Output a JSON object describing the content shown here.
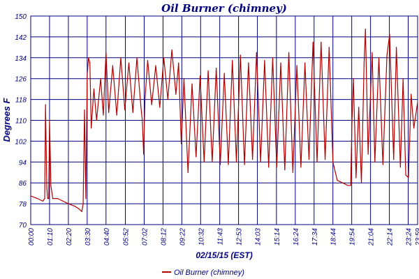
{
  "chart_data": {
    "type": "line",
    "title": "Oil Burner (chimney)",
    "xlabel": "02/15/15 (EST)",
    "ylabel": "Degrees F",
    "ylim": [
      70,
      150
    ],
    "y_ticks": [
      "70",
      "78",
      "86",
      "94",
      "102",
      "110",
      "118",
      "126",
      "134",
      "142",
      "150"
    ],
    "x_ticks": [
      "00:00",
      "01:10",
      "02:20",
      "03:30",
      "04:40",
      "05:52",
      "07:02",
      "08:12",
      "09:22",
      "10:32",
      "11:43",
      "12:53",
      "14:03",
      "15:14",
      "16:24",
      "17:34",
      "18:44",
      "19:54",
      "21:04",
      "22:14",
      "23:24",
      "23:59"
    ],
    "grid": true,
    "legend_position": "bottom-center",
    "series": [
      {
        "name": "Oil Burner (chimney)",
        "color": "#b00000",
        "points": [
          [
            "00:00",
            81
          ],
          [
            "00:25",
            80
          ],
          [
            "00:45",
            79
          ],
          [
            "00:52",
            80
          ],
          [
            "00:55",
            116
          ],
          [
            "01:00",
            84
          ],
          [
            "01:03",
            80
          ],
          [
            "01:07",
            80
          ],
          [
            "01:10",
            110
          ],
          [
            "01:15",
            85
          ],
          [
            "01:22",
            80
          ],
          [
            "01:40",
            80
          ],
          [
            "02:00",
            79
          ],
          [
            "02:20",
            78
          ],
          [
            "02:45",
            77
          ],
          [
            "03:00",
            76
          ],
          [
            "03:10",
            75
          ],
          [
            "03:15",
            78
          ],
          [
            "03:20",
            114
          ],
          [
            "03:25",
            80
          ],
          [
            "03:30",
            127
          ],
          [
            "03:35",
            134
          ],
          [
            "03:40",
            132
          ],
          [
            "03:45",
            107
          ],
          [
            "03:55",
            122
          ],
          [
            "04:05",
            110
          ],
          [
            "04:20",
            126
          ],
          [
            "04:30",
            112
          ],
          [
            "04:40",
            136
          ],
          [
            "04:50",
            113
          ],
          [
            "05:05",
            131
          ],
          [
            "05:20",
            112
          ],
          [
            "05:35",
            134
          ],
          [
            "05:50",
            114
          ],
          [
            "06:05",
            132
          ],
          [
            "06:20",
            113
          ],
          [
            "06:35",
            134
          ],
          [
            "06:50",
            115
          ],
          [
            "06:55",
            110
          ],
          [
            "07:00",
            97
          ],
          [
            "07:05",
            118
          ],
          [
            "07:15",
            133
          ],
          [
            "07:30",
            116
          ],
          [
            "07:45",
            131
          ],
          [
            "08:00",
            115
          ],
          [
            "08:15",
            134
          ],
          [
            "08:30",
            118
          ],
          [
            "08:45",
            137
          ],
          [
            "09:00",
            120
          ],
          [
            "09:10",
            132
          ],
          [
            "09:20",
            101
          ],
          [
            "09:30",
            126
          ],
          [
            "09:45",
            90
          ],
          [
            "10:00",
            124
          ],
          [
            "10:15",
            96
          ],
          [
            "10:30",
            127
          ],
          [
            "10:45",
            94
          ],
          [
            "11:00",
            129
          ],
          [
            "11:15",
            94
          ],
          [
            "11:30",
            130
          ],
          [
            "11:45",
            93
          ],
          [
            "12:00",
            128
          ],
          [
            "12:15",
            93
          ],
          [
            "12:30",
            133
          ],
          [
            "12:45",
            94
          ],
          [
            "13:00",
            135
          ],
          [
            "13:15",
            93
          ],
          [
            "13:30",
            132
          ],
          [
            "13:45",
            95
          ],
          [
            "14:00",
            136
          ],
          [
            "14:15",
            94
          ],
          [
            "14:30",
            133
          ],
          [
            "14:45",
            92
          ],
          [
            "15:00",
            134
          ],
          [
            "15:15",
            92
          ],
          [
            "15:30",
            132
          ],
          [
            "15:45",
            91
          ],
          [
            "16:00",
            136
          ],
          [
            "16:15",
            90
          ],
          [
            "16:30",
            131
          ],
          [
            "16:45",
            92
          ],
          [
            "17:00",
            132
          ],
          [
            "17:15",
            95
          ],
          [
            "17:30",
            140
          ],
          [
            "17:45",
            94
          ],
          [
            "18:00",
            140
          ],
          [
            "18:15",
            95
          ],
          [
            "18:30",
            138
          ],
          [
            "18:44",
            94
          ],
          [
            "19:00",
            87
          ],
          [
            "19:20",
            86
          ],
          [
            "19:40",
            85
          ],
          [
            "19:50",
            85
          ],
          [
            "19:55",
            110
          ],
          [
            "20:00",
            126
          ],
          [
            "20:10",
            88
          ],
          [
            "20:20",
            115
          ],
          [
            "20:30",
            86
          ],
          [
            "20:40",
            132
          ],
          [
            "20:45",
            145
          ],
          [
            "20:55",
            97
          ],
          [
            "21:10",
            136
          ],
          [
            "21:20",
            94
          ],
          [
            "21:35",
            134
          ],
          [
            "21:50",
            93
          ],
          [
            "22:05",
            135
          ],
          [
            "22:15",
            143
          ],
          [
            "22:30",
            95
          ],
          [
            "22:40",
            138
          ],
          [
            "22:55",
            92
          ],
          [
            "23:05",
            126
          ],
          [
            "23:15",
            89
          ],
          [
            "23:25",
            88
          ],
          [
            "23:35",
            120
          ],
          [
            "23:45",
            107
          ],
          [
            "23:59",
            117
          ]
        ]
      }
    ]
  }
}
